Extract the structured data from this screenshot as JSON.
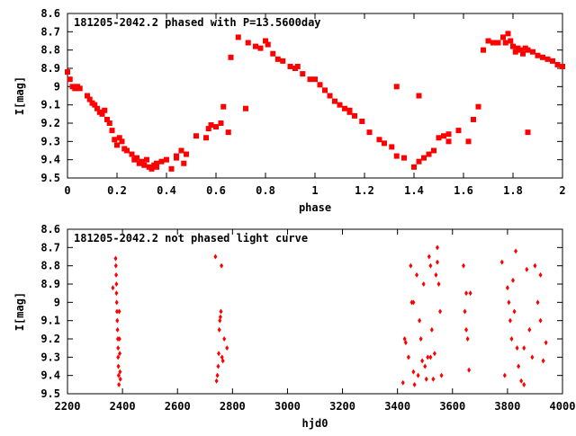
{
  "colors": {
    "points": "#ff0000",
    "axis": "#000000",
    "background": "#ffffff"
  },
  "chart_data": [
    {
      "type": "scatter",
      "title": "181205-2042.2 phased with P=13.5600day",
      "xlabel": "phase",
      "ylabel": "I[mag]",
      "xlim": [
        0,
        2
      ],
      "ylim": [
        9.5,
        8.6
      ],
      "y_inverted": true,
      "x_ticks": [
        "0",
        "0.2",
        "0.4",
        "0.6",
        "0.8",
        "1",
        "1.2",
        "1.4",
        "1.6",
        "1.8",
        "2"
      ],
      "y_ticks": [
        "8.6",
        "8.7",
        "8.8",
        "8.9",
        "9",
        "9.1",
        "9.2",
        "9.3",
        "9.4",
        "9.5"
      ],
      "marker": "filled-square",
      "series": [
        {
          "x": [
            0.0,
            0.01,
            0.02,
            0.03,
            0.04,
            0.05,
            0.08,
            0.09,
            0.1,
            0.11,
            0.12,
            0.13,
            0.14,
            0.15,
            0.16,
            0.17,
            0.18,
            0.19,
            0.2,
            0.21,
            0.22,
            0.23,
            0.24,
            0.26,
            0.27,
            0.28,
            0.29,
            0.3,
            0.31,
            0.32,
            0.33,
            0.34,
            0.35,
            0.36,
            0.38,
            0.4,
            0.42,
            0.44,
            0.46,
            0.47,
            0.48,
            0.52,
            0.57,
            0.58,
            0.6,
            0.62,
            0.63,
            0.66,
            0.69,
            0.73,
            0.76,
            0.78,
            0.8,
            0.81,
            0.83,
            0.85,
            0.87,
            0.9,
            0.92,
            0.95,
            0.98,
            1.0,
            1.02,
            1.04,
            1.06,
            1.08,
            1.1,
            1.12,
            1.14,
            1.16,
            1.19,
            1.22,
            1.26,
            1.28,
            1.33,
            1.36,
            1.4,
            1.42,
            1.44,
            1.46,
            1.48,
            1.5,
            1.52,
            1.58,
            1.64,
            1.66,
            1.68,
            1.7,
            1.72,
            1.74,
            1.76,
            1.77,
            1.78,
            1.79,
            1.8,
            1.81,
            1.82,
            1.83,
            1.84,
            1.85,
            1.86,
            1.88,
            1.9,
            1.92,
            1.94,
            1.96,
            1.98,
            2.0,
            1.33,
            1.42,
            1.54,
            0.56,
            0.72,
            0.65,
            0.24,
            0.36,
            0.44,
            0.93,
            1.14,
            1.31,
            1.86,
            1.54,
            1.62
          ],
          "y": [
            8.92,
            8.96,
            9.0,
            9.01,
            9.0,
            9.01,
            9.05,
            9.07,
            9.09,
            9.1,
            9.12,
            9.14,
            9.15,
            9.13,
            9.18,
            9.2,
            9.24,
            9.29,
            9.32,
            9.28,
            9.3,
            9.34,
            9.35,
            9.37,
            9.4,
            9.39,
            9.42,
            9.41,
            9.43,
            9.4,
            9.44,
            9.45,
            9.43,
            9.44,
            9.41,
            9.4,
            9.45,
            9.38,
            9.35,
            9.42,
            9.37,
            9.27,
            9.23,
            9.21,
            9.22,
            9.2,
            9.11,
            8.84,
            8.73,
            8.76,
            8.78,
            8.79,
            8.75,
            8.77,
            8.82,
            8.85,
            8.86,
            8.89,
            8.9,
            8.93,
            8.96,
            8.96,
            8.99,
            9.02,
            9.05,
            9.08,
            9.1,
            9.12,
            9.14,
            9.16,
            9.19,
            9.25,
            9.29,
            9.31,
            9.38,
            9.39,
            9.44,
            9.41,
            9.39,
            9.37,
            9.35,
            9.28,
            9.27,
            9.24,
            9.18,
            9.11,
            8.8,
            8.75,
            8.76,
            8.76,
            8.73,
            8.76,
            8.71,
            8.75,
            8.78,
            8.81,
            8.79,
            8.8,
            8.82,
            8.79,
            8.8,
            8.81,
            8.83,
            8.84,
            8.85,
            8.86,
            8.88,
            8.89,
            9.0,
            9.05,
            9.3,
            9.28,
            9.12,
            9.25,
            9.35,
            9.42,
            9.39,
            8.89,
            9.13,
            9.33,
            9.25,
            9.26,
            9.3
          ]
        }
      ]
    },
    {
      "type": "scatter",
      "title": "181205-2042.2 not phased light curve",
      "xlabel": "hjd0",
      "ylabel": "I[mag]",
      "xlim": [
        2200,
        4000
      ],
      "ylim": [
        9.5,
        8.6
      ],
      "y_inverted": true,
      "x_ticks": [
        "2200",
        "2400",
        "2600",
        "2800",
        "3000",
        "3200",
        "3400",
        "3600",
        "3800",
        "4000"
      ],
      "y_ticks": [
        "8.6",
        "8.7",
        "8.8",
        "8.9",
        "9",
        "9.1",
        "9.2",
        "9.3",
        "9.4",
        "9.5"
      ],
      "marker": "diamond",
      "series": [
        {
          "x": [
            2365,
            2375,
            2376,
            2377,
            2378,
            2378,
            2379,
            2380,
            2381,
            2382,
            2383,
            2384,
            2384,
            2385,
            2386,
            2387,
            2388,
            2389,
            2390,
            2391,
            2392,
            2738,
            2742,
            2745,
            2748,
            2750,
            2752,
            2754,
            2756,
            2758,
            2760,
            2762,
            2765,
            2770,
            2780,
            3420,
            3426,
            3430,
            3440,
            3448,
            3452,
            3458,
            3462,
            3470,
            3475,
            3480,
            3485,
            3490,
            3495,
            3500,
            3505,
            3510,
            3515,
            3520,
            3525,
            3530,
            3535,
            3540,
            3545,
            3550,
            3555,
            3560,
            3640,
            3645,
            3650,
            3655,
            3660,
            3665,
            3780,
            3790,
            3800,
            3805,
            3810,
            3815,
            3820,
            3825,
            3830,
            3835,
            3840,
            3850,
            3860,
            3870,
            3880,
            3890,
            3900,
            3910,
            3920,
            3930,
            3940,
            3458,
            3520,
            3545,
            3650,
            3860,
            3920
          ],
          "y": [
            8.92,
            8.76,
            8.8,
            8.85,
            8.9,
            8.95,
            9.0,
            9.05,
            9.1,
            9.15,
            9.2,
            9.25,
            9.3,
            9.35,
            9.4,
            9.45,
            9.05,
            9.2,
            9.28,
            9.38,
            9.42,
            8.75,
            9.43,
            9.4,
            9.35,
            9.28,
            9.15,
            9.1,
            9.08,
            9.05,
            8.8,
            9.3,
            9.32,
            9.2,
            9.25,
            9.44,
            9.2,
            9.22,
            9.3,
            8.8,
            9.0,
            9.38,
            9.45,
            8.85,
            9.4,
            9.1,
            9.2,
            9.32,
            8.9,
            9.35,
            9.42,
            9.3,
            8.75,
            8.8,
            9.15,
            9.42,
            9.28,
            8.85,
            8.7,
            8.9,
            9.05,
            9.4,
            8.8,
            9.05,
            9.15,
            9.2,
            9.37,
            8.95,
            8.78,
            9.4,
            8.92,
            9.0,
            9.1,
            9.2,
            8.88,
            9.05,
            8.72,
            9.25,
            9.35,
            9.43,
            9.45,
            8.82,
            9.15,
            9.3,
            8.8,
            9.0,
            9.1,
            9.32,
            9.22,
            9.0,
            9.3,
            8.78,
            8.95,
            9.25,
            8.85
          ]
        }
      ]
    }
  ]
}
